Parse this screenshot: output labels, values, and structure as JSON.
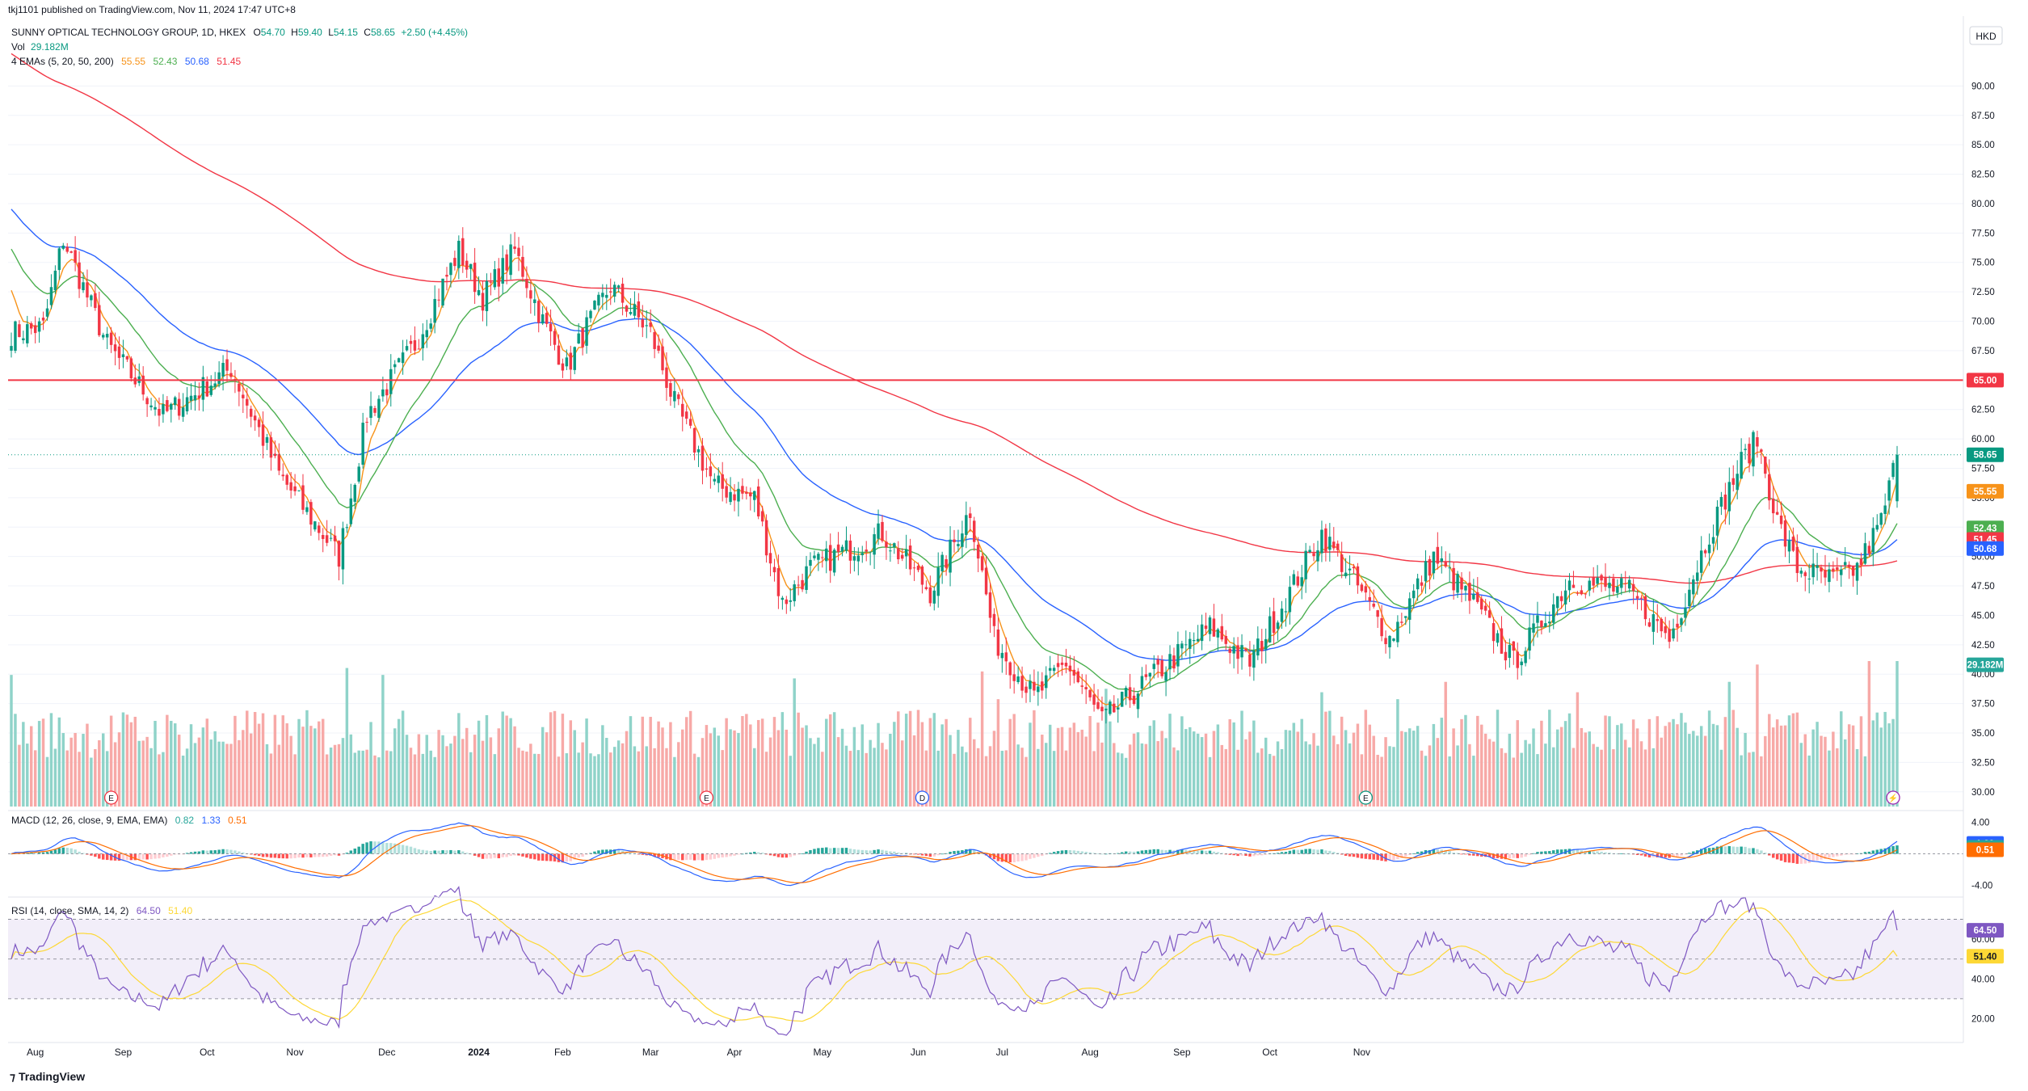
{
  "published": "tkj1101 published on TradingView.com, Nov 11, 2024 17:47 UTC+8",
  "currency": "HKD",
  "legend": {
    "symbol": "SUNNY OPTICAL TECHNOLOGY GROUP, 1D, HKEX",
    "o_label": "O",
    "o": "54.70",
    "h_label": "H",
    "h": "59.40",
    "l_label": "L",
    "l": "54.15",
    "c_label": "C",
    "c": "58.65",
    "change": "+2.50 (+4.45%)",
    "vol_label": "Vol",
    "vol": "29.182M",
    "ema_label": "4 EMAs (5, 20, 50, 200)",
    "ema5": "55.55",
    "ema20": "52.43",
    "ema50": "50.68",
    "ema200": "51.45",
    "macd_label": "MACD (12, 26, close, 9, EMA, EMA)",
    "macd_hist": "0.82",
    "macd_line": "1.33",
    "macd_signal": "0.51",
    "rsi_label": "RSI (14, close, SMA, 14, 2)",
    "rsi": "64.50",
    "rsi_ma": "51.40"
  },
  "brand": "TradingView",
  "colors": {
    "up": "#089981",
    "down": "#f23645",
    "vol_up": "#8fd3c9",
    "vol_down": "#f7a9a7",
    "ema5": "#f7931a",
    "ema20": "#4caf50",
    "ema50": "#2962ff",
    "ema200": "#f23645",
    "macd": "#2962ff",
    "signal": "#ff6d00",
    "rsi": "#7e57c2",
    "rsi_ma": "#fdd835",
    "hline": "#f23645",
    "rsi_band": "#7e57c2"
  },
  "chart_data": {
    "type": "candlestick",
    "x_ticks": [
      "Aug",
      "Sep",
      "Oct",
      "Nov",
      "Dec",
      "2024",
      "Feb",
      "Mar",
      "Apr",
      "May",
      "Jun",
      "Jul",
      "Aug",
      "Sep",
      "Oct",
      "Nov"
    ],
    "price_axis": {
      "ylim": [
        28.75,
        92.5
      ],
      "ticks": [
        "90.00",
        "87.50",
        "85.00",
        "82.50",
        "80.00",
        "77.50",
        "75.00",
        "72.50",
        "70.00",
        "67.50",
        "65.00",
        "62.50",
        "60.00",
        "57.50",
        "55.00",
        "52.50",
        "50.00",
        "47.50",
        "45.00",
        "42.50",
        "40.00",
        "37.50",
        "35.00",
        "32.50",
        "30.00"
      ]
    },
    "horizontal_line": {
      "value": 65.0,
      "label": "65.00"
    },
    "last_price": {
      "value": 58.65,
      "label": "58.65"
    },
    "price_labels": [
      {
        "value": 55.55,
        "label": "55.55",
        "color": "#f7931a"
      },
      {
        "value": 52.43,
        "label": "52.43",
        "color": "#4caf50"
      },
      {
        "value": 51.45,
        "label": "51.45",
        "color": "#f23645"
      },
      {
        "value": 50.68,
        "label": "50.68",
        "color": "#2962ff"
      },
      {
        "value": 65.0,
        "label": "65.00",
        "color": "#f23645"
      },
      {
        "value": 58.65,
        "label": "58.65",
        "color": "#089981"
      }
    ],
    "volume_label": {
      "label": "29.182M"
    },
    "macd_axis": {
      "ylim": [
        -5,
        5
      ],
      "ticks": [
        "4.00",
        "0.00",
        "-4.00"
      ],
      "labels": [
        {
          "value": 1.33,
          "label": "1.33",
          "color": "#2962ff"
        },
        {
          "value": 0.82,
          "label": "0.82",
          "color": "#26a69a"
        },
        {
          "value": 0.51,
          "label": "0.51",
          "color": "#ff6d00"
        }
      ]
    },
    "rsi_axis": {
      "ylim": [
        10,
        80
      ],
      "ticks": [
        "60.00",
        "40.00",
        "20.00"
      ],
      "labels": [
        {
          "value": 64.5,
          "label": "64.50",
          "color": "#7e57c2"
        },
        {
          "value": 51.4,
          "label": "51.40",
          "color": "#fdd835"
        }
      ]
    },
    "event_markers": [
      {
        "x": "Aug",
        "glyph": "E"
      },
      {
        "x": "Mar",
        "glyph": "E"
      },
      {
        "x": "Jun",
        "glyph": "D"
      },
      {
        "x": "Aug",
        "glyph": "E"
      },
      {
        "x": "Nov",
        "glyph": "⚡"
      }
    ],
    "anchors": [
      {
        "i": 0,
        "p": 69
      },
      {
        "i": 8,
        "p": 69.5
      },
      {
        "i": 13,
        "p": 77
      },
      {
        "i": 24,
        "p": 68
      },
      {
        "i": 38,
        "p": 62
      },
      {
        "i": 55,
        "p": 66
      },
      {
        "i": 67,
        "p": 57
      },
      {
        "i": 82,
        "p": 50
      },
      {
        "i": 89,
        "p": 62
      },
      {
        "i": 101,
        "p": 68
      },
      {
        "i": 112,
        "p": 76
      },
      {
        "i": 118,
        "p": 72
      },
      {
        "i": 126,
        "p": 76
      },
      {
        "i": 133,
        "p": 70
      },
      {
        "i": 139,
        "p": 66
      },
      {
        "i": 144,
        "p": 69.5
      },
      {
        "i": 150,
        "p": 73
      },
      {
        "i": 160,
        "p": 69
      },
      {
        "i": 166,
        "p": 63
      },
      {
        "i": 176,
        "p": 56
      },
      {
        "i": 186,
        "p": 55
      },
      {
        "i": 193,
        "p": 46
      },
      {
        "i": 200,
        "p": 49
      },
      {
        "i": 218,
        "p": 52
      },
      {
        "i": 230,
        "p": 47
      },
      {
        "i": 240,
        "p": 54
      },
      {
        "i": 246,
        "p": 43
      },
      {
        "i": 256,
        "p": 38
      },
      {
        "i": 264,
        "p": 41
      },
      {
        "i": 273,
        "p": 36
      },
      {
        "i": 283,
        "p": 39
      },
      {
        "i": 300,
        "p": 44
      },
      {
        "i": 310,
        "p": 41
      },
      {
        "i": 320,
        "p": 47
      },
      {
        "i": 328,
        "p": 52
      },
      {
        "i": 336,
        "p": 48
      },
      {
        "i": 345,
        "p": 43
      },
      {
        "i": 356,
        "p": 50
      },
      {
        "i": 366,
        "p": 46
      },
      {
        "i": 376,
        "p": 41
      },
      {
        "i": 390,
        "p": 48
      },
      {
        "i": 405,
        "p": 47
      },
      {
        "i": 415,
        "p": 43
      },
      {
        "i": 425,
        "p": 52
      },
      {
        "i": 433,
        "p": 58
      },
      {
        "i": 437,
        "p": 60
      },
      {
        "i": 442,
        "p": 53
      },
      {
        "i": 447,
        "p": 49
      },
      {
        "i": 456,
        "p": 48
      },
      {
        "i": 462,
        "p": 49
      },
      {
        "i": 468,
        "p": 53
      },
      {
        "i": 472,
        "p": 58.65
      }
    ],
    "volume_spikes": [
      {
        "i": 0,
        "v": 38
      },
      {
        "i": 84,
        "v": 40
      },
      {
        "i": 93,
        "v": 38
      },
      {
        "i": 196,
        "v": 37
      },
      {
        "i": 243,
        "v": 39
      },
      {
        "i": 247,
        "v": 31
      },
      {
        "i": 274,
        "v": 34
      },
      {
        "i": 328,
        "v": 33
      },
      {
        "i": 347,
        "v": 31
      },
      {
        "i": 359,
        "v": 36
      },
      {
        "i": 392,
        "v": 33
      },
      {
        "i": 430,
        "v": 36
      },
      {
        "i": 437,
        "v": 41
      },
      {
        "i": 465,
        "v": 42
      },
      {
        "i": 472,
        "v": 42
      }
    ]
  }
}
